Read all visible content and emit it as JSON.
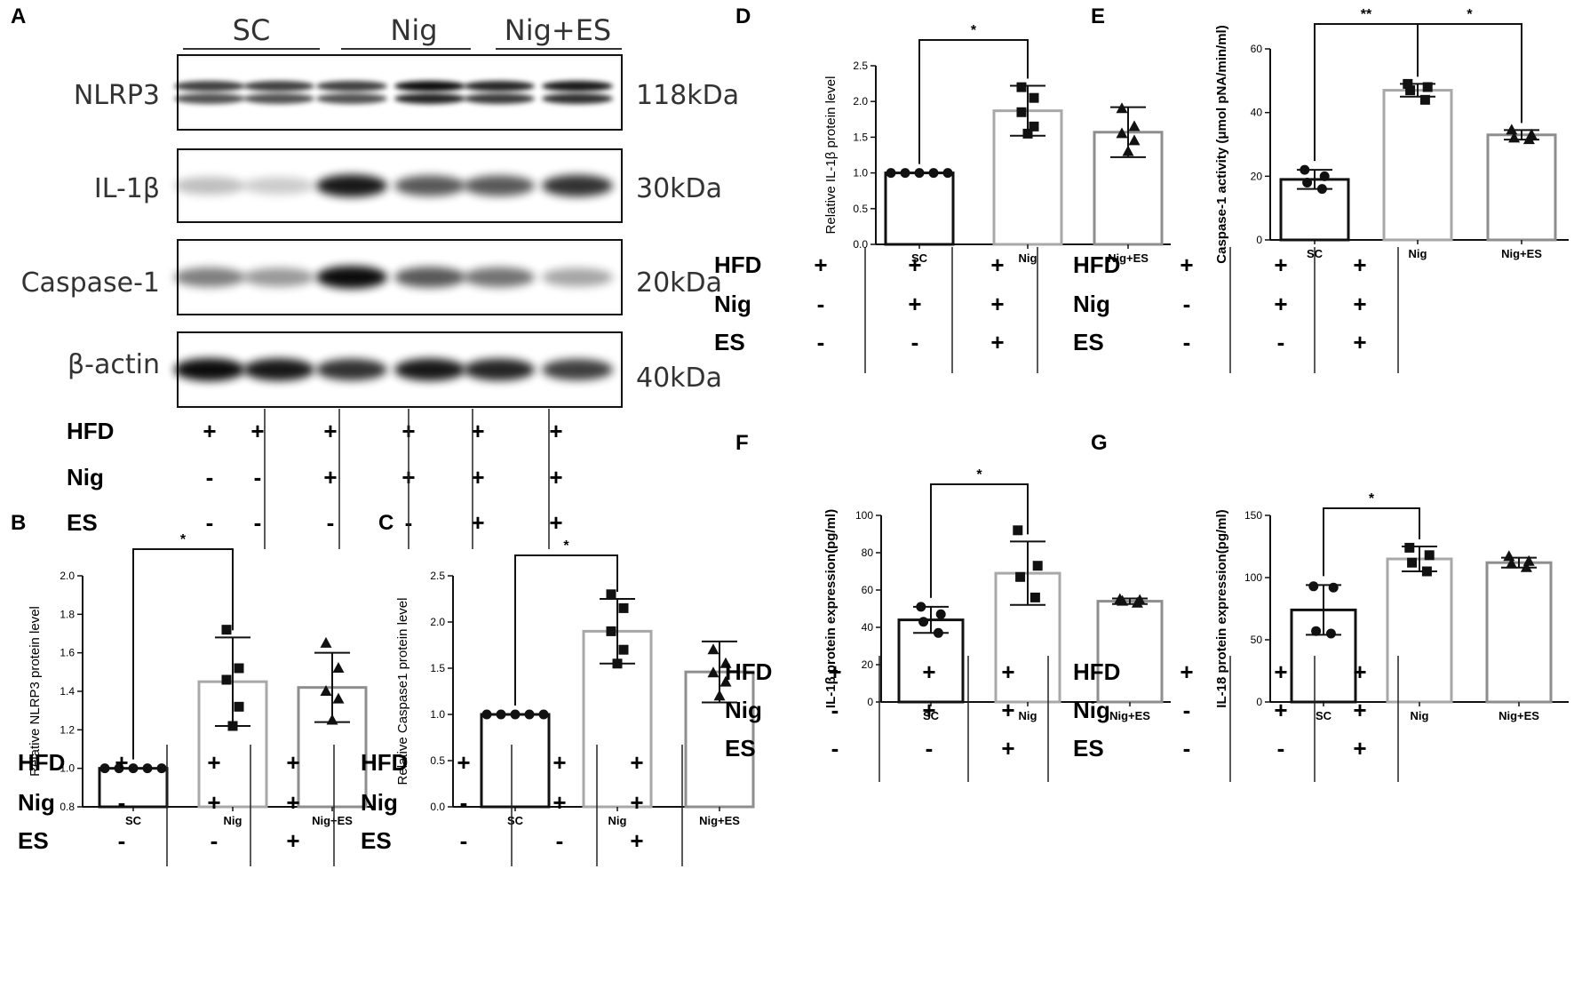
{
  "panel_letters": [
    "A",
    "B",
    "C",
    "D",
    "E",
    "F",
    "G"
  ],
  "western_blot": {
    "groups": [
      "SC",
      "Nig",
      "Nig+ES"
    ],
    "bands": [
      {
        "label": "NLRP3",
        "kda": "118kDa"
      },
      {
        "label": "IL-1β",
        "kda": "30kDa"
      },
      {
        "label": "Caspase-1",
        "kda": "20kDa"
      },
      {
        "label": "β-actin",
        "kda": "40kDa"
      }
    ],
    "treatment_table": {
      "rows": [
        "HFD",
        "Nig",
        "ES"
      ],
      "lanes": [
        [
          "+",
          "-",
          "-"
        ],
        [
          "+",
          "-",
          "-"
        ],
        [
          "+",
          "+",
          "-"
        ],
        [
          "+",
          "+",
          "-"
        ],
        [
          "+",
          "+",
          "+"
        ],
        [
          "+",
          "+",
          "+"
        ]
      ]
    }
  },
  "treatment_table": {
    "rows": [
      "HFD",
      "Nig",
      "ES"
    ],
    "columns": [
      [
        "+",
        "-",
        "-"
      ],
      [
        "+",
        "+",
        "-"
      ],
      [
        "+",
        "+",
        "+"
      ]
    ]
  },
  "chart_data": [
    {
      "panel": "B",
      "type": "bar",
      "categories": [
        "SC",
        "Nig",
        "Nig+ES"
      ],
      "values": [
        1.0,
        1.45,
        1.42
      ],
      "errors": [
        0,
        0.23,
        0.18
      ],
      "points": [
        [
          1.0,
          1.0,
          1.0,
          1.0,
          1.0
        ],
        [
          1.72,
          1.52,
          1.46,
          1.32,
          1.22
        ],
        [
          1.65,
          1.52,
          1.4,
          1.36,
          1.25
        ]
      ],
      "marker": [
        "circle",
        "square",
        "triangle"
      ],
      "ylabel": "Relative NLRP3 protein level",
      "ylim": [
        0.8,
        2.0
      ],
      "yticks": [
        "0.8",
        "1.0",
        "1.2",
        "1.4",
        "1.6",
        "1.8",
        "2.0"
      ],
      "significance": [
        {
          "from": 0,
          "to": 1,
          "label": "*"
        }
      ]
    },
    {
      "panel": "C",
      "type": "bar",
      "categories": [
        "SC",
        "Nig",
        "Nig+ES"
      ],
      "values": [
        1.0,
        1.9,
        1.46
      ],
      "errors": [
        0,
        0.35,
        0.33
      ],
      "points": [
        [
          1.0,
          1.0,
          1.0,
          1.0,
          1.0
        ],
        [
          2.3,
          2.15,
          1.9,
          1.7,
          1.55
        ],
        [
          1.7,
          1.55,
          1.45,
          1.35,
          1.2
        ]
      ],
      "marker": [
        "circle",
        "square",
        "triangle"
      ],
      "ylabel": "Relative Caspase1 protein level",
      "ylim": [
        0.0,
        2.5
      ],
      "yticks": [
        "0.0",
        "0.5",
        "1.0",
        "1.5",
        "2.0",
        "2.5"
      ],
      "significance": [
        {
          "from": 0,
          "to": 1,
          "label": "*"
        }
      ]
    },
    {
      "panel": "D",
      "type": "bar",
      "categories": [
        "SC",
        "Nig",
        "Nig+ES"
      ],
      "values": [
        1.0,
        1.87,
        1.57
      ],
      "errors": [
        0,
        0.35,
        0.35
      ],
      "points": [
        [
          1.0,
          1.0,
          1.0,
          1.0,
          1.0
        ],
        [
          2.2,
          2.05,
          1.85,
          1.65,
          1.55
        ],
        [
          1.9,
          1.65,
          1.55,
          1.45,
          1.3
        ]
      ],
      "marker": [
        "circle",
        "square",
        "triangle"
      ],
      "ylabel": "Relative IL-1β protein level",
      "ylim": [
        0.0,
        2.5
      ],
      "yticks": [
        "0.0",
        "0.5",
        "1.0",
        "1.5",
        "2.0",
        "2.5"
      ],
      "significance": [
        {
          "from": 0,
          "to": 1,
          "label": "*"
        }
      ]
    },
    {
      "panel": "E",
      "type": "bar",
      "categories": [
        "SC",
        "Nig",
        "Nig+ES"
      ],
      "values": [
        19,
        47,
        33
      ],
      "errors": [
        3,
        2,
        1.5
      ],
      "points": [
        [
          22,
          20,
          18,
          16
        ],
        [
          49,
          48,
          47,
          44
        ],
        [
          34.5,
          33,
          32,
          31.5
        ]
      ],
      "marker": [
        "circle",
        "square",
        "triangle"
      ],
      "ylabel": "Caspase-1 activity (μmol pNA/min/ml)",
      "ylim": [
        0,
        60
      ],
      "yticks": [
        "0",
        "20",
        "40",
        "60"
      ],
      "significance": [
        {
          "from": 0,
          "to": 1,
          "label": "**"
        },
        {
          "from": 1,
          "to": 2,
          "label": "*"
        }
      ]
    },
    {
      "panel": "F",
      "type": "bar",
      "categories": [
        "SC",
        "Nig",
        "Nig+ES"
      ],
      "values": [
        44,
        69,
        54
      ],
      "errors": [
        7,
        17,
        1.5
      ],
      "points": [
        [
          51,
          47,
          43,
          37
        ],
        [
          92,
          73,
          67,
          56
        ],
        [
          55,
          54.5,
          54,
          53
        ]
      ],
      "marker": [
        "circle",
        "square",
        "triangle"
      ],
      "ylabel": "IL-1β protein expression(pg/ml)",
      "ylim": [
        0,
        100
      ],
      "yticks": [
        "0",
        "20",
        "40",
        "60",
        "80",
        "100"
      ],
      "significance": [
        {
          "from": 0,
          "to": 1,
          "label": "*"
        }
      ]
    },
    {
      "panel": "G",
      "type": "bar",
      "categories": [
        "SC",
        "Nig",
        "Nig+ES"
      ],
      "values": [
        74,
        115,
        112
      ],
      "errors": [
        20,
        10,
        4
      ],
      "points": [
        [
          93,
          92,
          57,
          55
        ],
        [
          124,
          118,
          112,
          105
        ],
        [
          117,
          113,
          111,
          108
        ]
      ],
      "marker": [
        "circle",
        "square",
        "triangle"
      ],
      "ylabel": "IL-18 protein expression(pg/ml)",
      "ylim": [
        0,
        150
      ],
      "yticks": [
        "0",
        "50",
        "100",
        "150"
      ],
      "significance": [
        {
          "from": 0,
          "to": 1,
          "label": "*"
        }
      ]
    }
  ]
}
